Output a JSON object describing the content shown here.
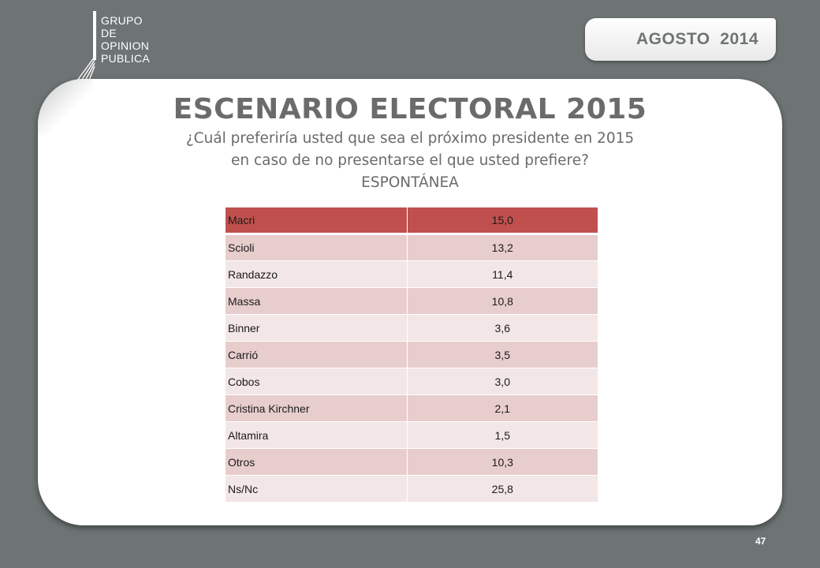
{
  "logo": {
    "lines": [
      "GRUPO",
      "DE",
      "OPINION",
      "PUBLICA"
    ]
  },
  "date_badge": "AGOSTO  2014",
  "title": "ESCENARIO ELECTORAL 2015",
  "subtitle_lines": [
    "¿Cuál preferiría usted que sea el próximo presidente en 2015",
    "en caso de no presentarse el que usted prefiere?",
    "ESPONTÁNEA"
  ],
  "table": {
    "rows": [
      {
        "name": "Macri",
        "value": "15,0"
      },
      {
        "name": "Scioli",
        "value": "13,2"
      },
      {
        "name": "Randazzo",
        "value": "11,4"
      },
      {
        "name": "Massa",
        "value": "10,8"
      },
      {
        "name": "Binner",
        "value": "3,6"
      },
      {
        "name": "Carrió",
        "value": "3,5"
      },
      {
        "name": "Cobos",
        "value": "3,0"
      },
      {
        "name": "Cristina Kirchner",
        "value": "2,1"
      },
      {
        "name": "Altamira",
        "value": "1,5"
      },
      {
        "name": "Otros",
        "value": "10,3"
      },
      {
        "name": "Ns/Nc",
        "value": "25,8"
      }
    ]
  },
  "page_number": "47",
  "colors": {
    "header_row": "#c0504d",
    "row_dark": "#e8cdcd",
    "row_light": "#f3e6e6",
    "background": "#6e7474"
  }
}
